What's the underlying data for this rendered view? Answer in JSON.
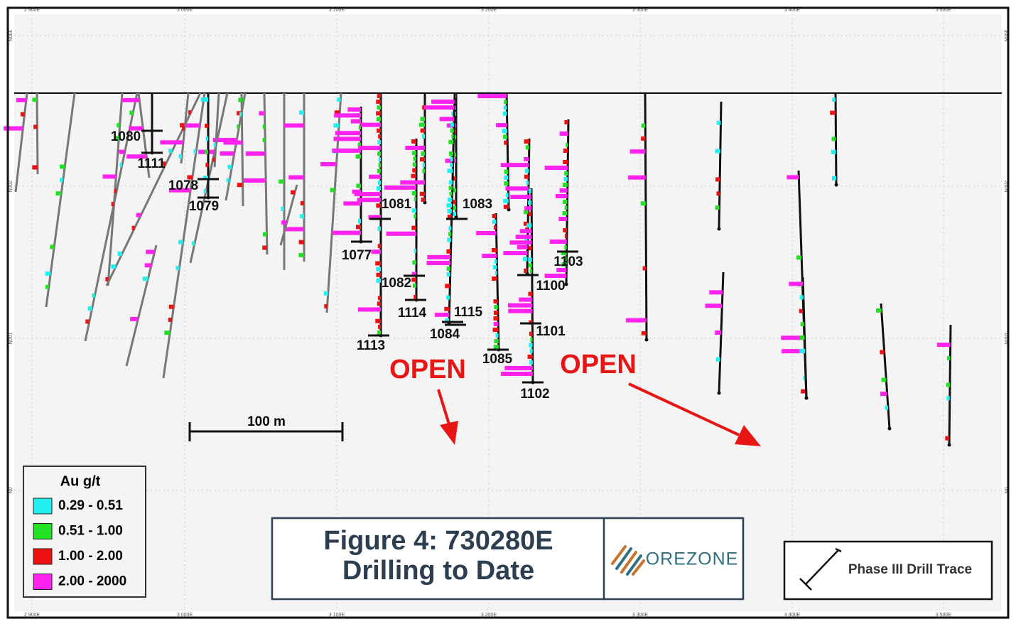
{
  "axes": {
    "x_labels": [
      "2 900E",
      "3 000E",
      "3 100E",
      "3 200E",
      "3 300E",
      "3 400E",
      "3 500E"
    ],
    "y_labels": [
      "300N",
      "200N",
      "100N",
      "0N"
    ]
  },
  "holes": [
    "1080",
    "1111",
    "1078",
    "1079",
    "1081",
    "1077",
    "1083",
    "1082",
    "1114",
    "1115",
    "1084",
    "1113",
    "1085",
    "1100",
    "1101",
    "1102",
    "1103"
  ],
  "annotations": {
    "open": [
      "OPEN",
      "OPEN"
    ],
    "scale_bar": "100 m"
  },
  "legend": {
    "title": "Au g/t",
    "items": [
      {
        "label": "0.29 - 0.51",
        "color": "#22f0f0"
      },
      {
        "label": "0.51 - 1.00",
        "color": "#22e022"
      },
      {
        "label": "1.00 - 2.00",
        "color": "#ee1111"
      },
      {
        "label": "2.00 - 2000",
        "color": "#ff22ee"
      }
    ]
  },
  "title_box": {
    "lines": [
      "Figure 4: 730280E",
      "Drilling to Date"
    ],
    "logo": "OREZONE"
  },
  "key": {
    "label": "Phase III Drill Trace"
  }
}
